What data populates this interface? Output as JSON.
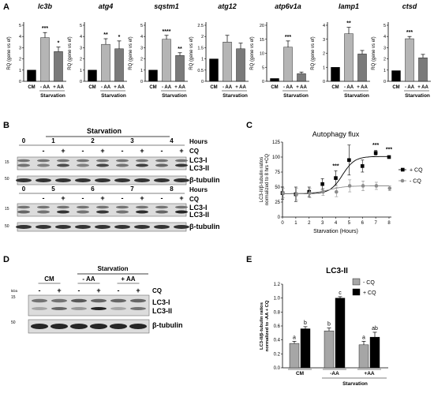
{
  "panels": {
    "a": "A",
    "b": "B",
    "c": "C",
    "d": "D",
    "e": "E"
  },
  "panel_a": {
    "ylabel": "RQ (gene vs ef)",
    "group_label": "Starvation",
    "categories": [
      "CM",
      "- AA",
      "+ AA"
    ],
    "colors": {
      "cm": "#000000",
      "minus_aa": "#b5b5b5",
      "plus_aa": "#7a7a7a"
    }
  },
  "chart_data": [
    {
      "type": "bar",
      "title": "lc3b",
      "categories": [
        "CM",
        "- AA",
        "+ AA"
      ],
      "values": [
        1,
        3.9,
        2.65
      ],
      "errors": [
        0,
        0.45,
        0.4
      ],
      "ylim": [
        0,
        5
      ],
      "ticks": [
        0,
        1,
        2,
        3,
        4,
        5
      ],
      "sig": [
        "",
        "***",
        "*"
      ]
    },
    {
      "type": "bar",
      "title": "atg4",
      "categories": [
        "CM",
        "- AA",
        "+ AA"
      ],
      "values": [
        1,
        3.3,
        2.9
      ],
      "errors": [
        0,
        0.5,
        0.7
      ],
      "ylim": [
        0,
        5
      ],
      "ticks": [
        0,
        1,
        2,
        3,
        4,
        5
      ],
      "sig": [
        "",
        "**",
        "*"
      ]
    },
    {
      "type": "bar",
      "title": "sqstm1",
      "categories": [
        "CM",
        "- AA",
        "+ AA"
      ],
      "values": [
        1,
        3.75,
        2.3
      ],
      "errors": [
        0,
        0.35,
        0.25
      ],
      "ylim": [
        0,
        5
      ],
      "ticks": [
        0,
        1,
        2,
        3,
        4,
        5
      ],
      "sig": [
        "",
        "****",
        "**"
      ]
    },
    {
      "type": "bar",
      "title": "atg12",
      "categories": [
        "CM",
        "- AA",
        "+ AA"
      ],
      "values": [
        1,
        1.75,
        1.45
      ],
      "errors": [
        0,
        0.3,
        0.25
      ],
      "ylim": [
        0,
        2.5
      ],
      "ticks": [
        0,
        0.5,
        1,
        1.5,
        2,
        2.5
      ],
      "sig": [
        "",
        "",
        ""
      ]
    },
    {
      "type": "bar",
      "title": "atp6v1a",
      "categories": [
        "CM",
        "- AA",
        "+ AA"
      ],
      "values": [
        1,
        12.2,
        2.7
      ],
      "errors": [
        0,
        2.2,
        0.6
      ],
      "ylim": [
        0,
        20
      ],
      "ticks": [
        0,
        5,
        10,
        15,
        20
      ],
      "sig": [
        "",
        "***",
        ""
      ]
    },
    {
      "type": "bar",
      "title": "lamp1",
      "categories": [
        "CM",
        "- AA",
        "+ AA"
      ],
      "values": [
        1,
        3.4,
        1.95
      ],
      "errors": [
        0,
        0.45,
        0.25
      ],
      "ylim": [
        0,
        4
      ],
      "ticks": [
        0,
        1,
        2,
        3,
        4
      ],
      "sig": [
        "",
        "**",
        ""
      ]
    },
    {
      "type": "bar",
      "title": "ctsd",
      "categories": [
        "CM",
        "- AA",
        "+ AA"
      ],
      "values": [
        0.95,
        3.8,
        2.1
      ],
      "errors": [
        0,
        0.2,
        0.3
      ],
      "ylim": [
        0,
        5
      ],
      "ticks": [
        0,
        1,
        2,
        3,
        4,
        5
      ],
      "sig": [
        "",
        "***",
        ""
      ]
    },
    {
      "type": "line",
      "title": "Autophagy flux",
      "xlabel": "Starvation (Hours)",
      "ylabel": "LC3-II/β-tubulin ratios normalized to 8 hrs +CQ",
      "xlim": [
        0,
        8
      ],
      "ylim": [
        0,
        125
      ],
      "xticks": [
        0,
        1,
        2,
        3,
        4,
        5,
        6,
        7,
        8
      ],
      "yticks": [
        0,
        25,
        50,
        75,
        100,
        125
      ],
      "series": [
        {
          "name": "+ CQ",
          "color": "#000000",
          "x": [
            0,
            1,
            2,
            3,
            4,
            5,
            6,
            7,
            8
          ],
          "y": [
            40,
            38,
            42,
            55,
            65,
            95,
            85,
            107,
            100
          ],
          "errors": [
            10,
            12,
            8,
            9,
            12,
            25,
            10,
            4,
            2
          ]
        },
        {
          "name": "- CQ",
          "color": "#8c8c8c",
          "x": [
            0,
            1,
            2,
            3,
            4,
            5,
            6,
            7,
            8
          ],
          "y": [
            40,
            38,
            40,
            42,
            42,
            52,
            52,
            52,
            48
          ],
          "errors": [
            8,
            10,
            8,
            6,
            8,
            10,
            8,
            6,
            4
          ]
        }
      ],
      "annotations": [
        {
          "x": 4,
          "y": 82,
          "text": "***"
        },
        {
          "x": 7,
          "y": 117,
          "text": "***"
        },
        {
          "x": 8,
          "y": 110,
          "text": "***"
        }
      ],
      "legend_position": "right"
    },
    {
      "type": "bar",
      "title": "LC3-II",
      "ylabel": "LC3-II/β-tubulin ratios normalized to -AA + CQ",
      "categories": [
        "CM",
        "-AA",
        "+AA"
      ],
      "group_label": "Starvation",
      "ylim": [
        0,
        1.2
      ],
      "yticks": [
        0.0,
        0.2,
        0.4,
        0.6,
        0.8,
        1.0,
        1.2
      ],
      "series": [
        {
          "name": "- CQ",
          "color": "#a6a6a6",
          "values": [
            0.35,
            0.53,
            0.33
          ],
          "errors": [
            0.03,
            0.04,
            0.05
          ],
          "letters": [
            "a",
            "b",
            "a"
          ]
        },
        {
          "name": "+ CQ",
          "color": "#000000",
          "values": [
            0.56,
            1.0,
            0.44
          ],
          "errors": [
            0.03,
            0.02,
            0.07
          ],
          "letters": [
            "b",
            "c",
            "ab"
          ]
        }
      ],
      "legend_position": "top-right"
    }
  ],
  "blot_b": {
    "starvation": "Starvation",
    "hours_label": "Hours",
    "cq_label": "CQ",
    "row1_hours": [
      "0",
      "1",
      "2",
      "3",
      "4"
    ],
    "row2_hours": [
      "0",
      "5",
      "6",
      "7",
      "8"
    ],
    "cq_marks": [
      "-",
      "+"
    ],
    "band_labels": {
      "lc3i": "LC3-I",
      "lc3ii": "LC3-II",
      "tubulin": "β-tubulin"
    },
    "markers": {
      "m15": "15",
      "m50": "50"
    }
  },
  "blot_d": {
    "kda": "kDa",
    "starvation": "Starvation",
    "groups": [
      "CM",
      "- AA",
      "+ AA"
    ],
    "cq_label": "CQ",
    "cq_marks": [
      "-",
      "+"
    ],
    "band_labels": {
      "lc3i": "LC3-I",
      "lc3ii": "LC3-II",
      "tubulin": "β-tubulin"
    },
    "markers": {
      "m15": "15",
      "m50": "50"
    }
  }
}
